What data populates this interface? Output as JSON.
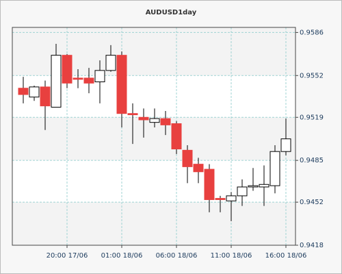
{
  "chart_data": {
    "type": "candlestick",
    "title": "AUDUSD1day",
    "categories": [
      null,
      null,
      null,
      null,
      "20:00 17/06",
      null,
      null,
      null,
      null,
      "01:00 18/06",
      null,
      null,
      null,
      null,
      "06:00 18/06",
      null,
      null,
      null,
      null,
      "11:00 18/06",
      null,
      null,
      null,
      null,
      "16:00 18/06"
    ],
    "open": [
      0.9542,
      0.9535,
      0.9543,
      0.9527,
      0.9568,
      0.955,
      0.955,
      0.9547,
      0.9556,
      0.9568,
      0.9522,
      0.9519,
      0.9515,
      0.9518,
      0.9514,
      0.9493,
      0.9482,
      0.9478,
      0.9455,
      0.9453,
      0.9457,
      0.9464,
      0.9464,
      0.9465,
      0.9492
    ],
    "high": [
      0.9551,
      0.9544,
      0.9548,
      0.9577,
      0.9569,
      0.9557,
      0.9558,
      0.9564,
      0.9576,
      0.9571,
      0.953,
      0.9526,
      0.9526,
      0.9524,
      0.9516,
      0.9497,
      0.9487,
      0.9482,
      0.9457,
      0.946,
      0.947,
      0.9479,
      0.9481,
      0.9497,
      0.9518
    ],
    "low": [
      0.953,
      0.9532,
      0.9509,
      0.9527,
      0.9542,
      0.9542,
      0.9538,
      0.953,
      0.9555,
      0.9511,
      0.9498,
      0.9503,
      0.9511,
      0.9505,
      0.949,
      0.9467,
      0.9467,
      0.9444,
      0.9444,
      0.9437,
      0.9449,
      0.9461,
      0.9449,
      0.9459,
      0.9489
    ],
    "close": [
      0.9537,
      0.9543,
      0.9528,
      0.9568,
      0.9546,
      0.9549,
      0.9546,
      0.9556,
      0.9568,
      0.9522,
      0.9521,
      0.9517,
      0.9518,
      0.9513,
      0.9494,
      0.948,
      0.9476,
      0.9454,
      0.9454,
      0.9457,
      0.9464,
      0.9465,
      0.9466,
      0.9492,
      0.9502
    ],
    "up_color": "#ffffff",
    "down_color": "#e8403f",
    "ylim": [
      0.9418,
      0.959
    ],
    "yticks": [
      0.9418,
      0.9452,
      0.9485,
      0.9519,
      0.9552,
      0.9586
    ],
    "grid": true
  }
}
